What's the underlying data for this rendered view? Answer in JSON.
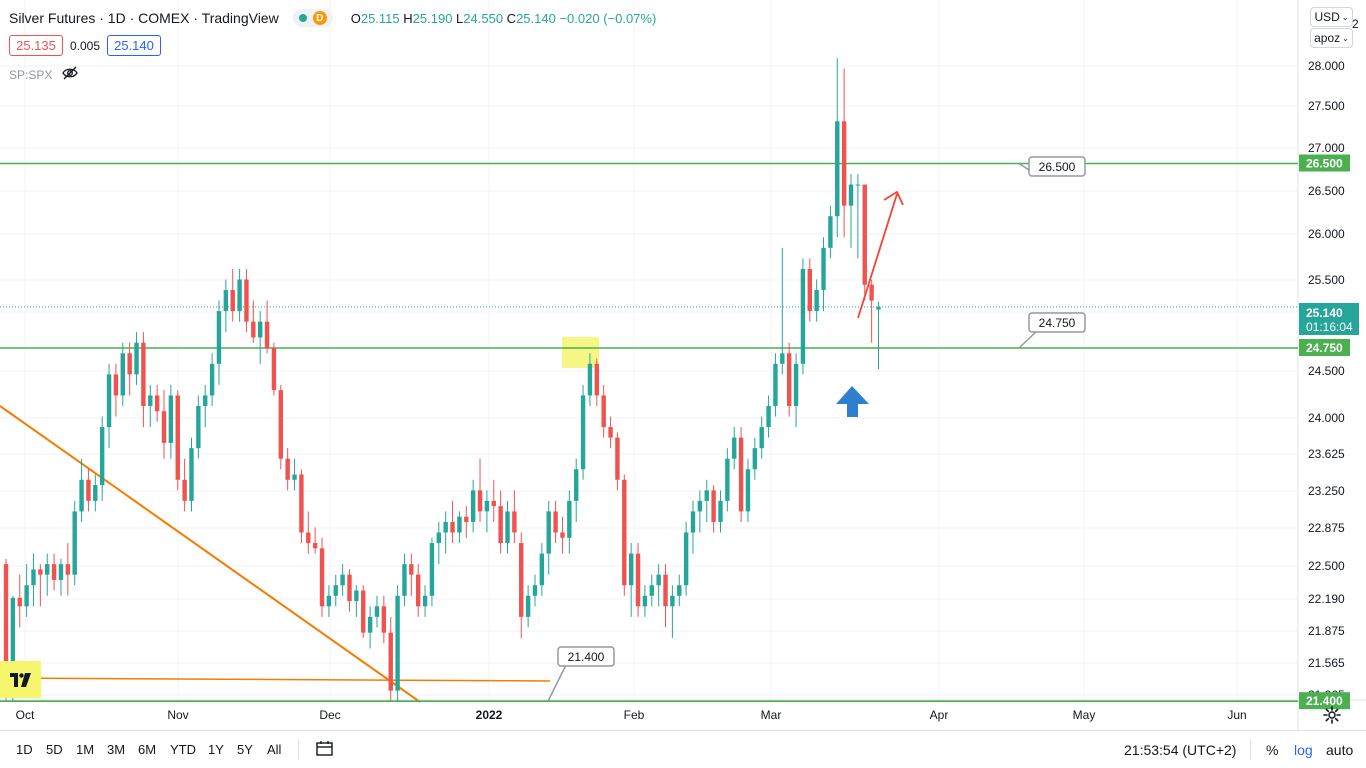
{
  "header": {
    "symbol_title": "Silver Futures · 1D · COMEX · TradingView",
    "delay_badge": "D",
    "ohlc": {
      "o_label": "O",
      "o": "25.115",
      "h_label": "H",
      "h": "25.190",
      "l_label": "L",
      "l": "24.550",
      "c_label": "C",
      "c": "25.140",
      "change": "−0.020 (−0.07%)"
    },
    "bid": "25.135",
    "spread": "0.005",
    "ask": "25.140",
    "overlay_symbol": "SP:SPX",
    "currency": "USD",
    "scale_mode": "apoz",
    "scale_top_partial": "2"
  },
  "bottom_bar": {
    "ranges": [
      "1D",
      "5D",
      "1M",
      "3M",
      "6M",
      "YTD",
      "1Y",
      "5Y",
      "All"
    ],
    "clock": "21:53:54 (UTC+2)",
    "percent": "%",
    "log": "log",
    "auto": "auto"
  },
  "colors": {
    "up": "#26a69a",
    "down": "#ef5350",
    "level_line": "#4caf50",
    "trend_line": "#f57c00",
    "grid": "#f0f3fa",
    "highlight": "#f5f56e",
    "arrow_red": "#f44336",
    "arrow_blue": "#2f7fd1"
  },
  "icons": {
    "chart_type": "candles-icon",
    "settings": "gear-icon",
    "eye_hidden": "eye-off-icon",
    "range_compare": "calendar-range-icon"
  },
  "chart_data": {
    "type": "candlestick",
    "title": "Silver Futures · 1D · COMEX",
    "y_axis_ticks": [
      "28.000",
      "27.500",
      "27.000",
      "26.500",
      "26.000",
      "25.500",
      "25.000",
      "24.500",
      "24.000",
      "23.625",
      "23.250",
      "22.875",
      "22.500",
      "22.190",
      "21.875",
      "21.565",
      "21.265"
    ],
    "x_axis_ticks": [
      "Oct",
      "Nov",
      "Dec",
      "2022",
      "Feb",
      "Mar",
      "Apr",
      "May",
      "Jun"
    ],
    "ylim": [
      21.2,
      28.3
    ],
    "current_price": "25.140",
    "countdown": "01:16:04",
    "levels": [
      {
        "value": 26.5,
        "label": "26.500"
      },
      {
        "value": 24.75,
        "label": "24.750"
      },
      {
        "value": 21.4,
        "label": "21.400"
      }
    ],
    "candles": [
      [
        22.7,
        22.75,
        21.4,
        21.48
      ],
      [
        21.48,
        22.4,
        21.4,
        22.38
      ],
      [
        22.38,
        22.6,
        22.1,
        22.3
      ],
      [
        22.3,
        22.7,
        22.2,
        22.5
      ],
      [
        22.5,
        22.8,
        22.3,
        22.65
      ],
      [
        22.65,
        22.7,
        22.3,
        22.6
      ],
      [
        22.6,
        22.8,
        22.4,
        22.7
      ],
      [
        22.7,
        22.8,
        22.45,
        22.55
      ],
      [
        22.55,
        22.75,
        22.4,
        22.7
      ],
      [
        22.7,
        22.9,
        22.4,
        22.6
      ],
      [
        22.6,
        23.3,
        22.5,
        23.2
      ],
      [
        23.2,
        23.7,
        23.1,
        23.5
      ],
      [
        23.5,
        23.6,
        23.2,
        23.3
      ],
      [
        23.3,
        23.55,
        23.2,
        23.45
      ],
      [
        23.45,
        24.1,
        23.3,
        24.0
      ],
      [
        24.0,
        24.6,
        23.8,
        24.5
      ],
      [
        24.5,
        24.6,
        24.1,
        24.3
      ],
      [
        24.3,
        24.8,
        24.2,
        24.7
      ],
      [
        24.7,
        24.8,
        24.3,
        24.5
      ],
      [
        24.5,
        24.9,
        24.4,
        24.8
      ],
      [
        24.8,
        24.9,
        24.0,
        24.2
      ],
      [
        24.2,
        24.4,
        24.0,
        24.3
      ],
      [
        24.3,
        24.4,
        24.05,
        24.15
      ],
      [
        24.15,
        24.35,
        23.7,
        23.85
      ],
      [
        23.85,
        24.4,
        23.7,
        24.3
      ],
      [
        24.3,
        24.35,
        23.4,
        23.5
      ],
      [
        23.5,
        23.7,
        23.2,
        23.3
      ],
      [
        23.3,
        23.9,
        23.2,
        23.8
      ],
      [
        23.8,
        24.3,
        23.7,
        24.2
      ],
      [
        24.2,
        24.4,
        24.0,
        24.3
      ],
      [
        24.3,
        24.7,
        24.2,
        24.6
      ],
      [
        24.6,
        25.2,
        24.4,
        25.1
      ],
      [
        25.1,
        25.4,
        24.9,
        25.3
      ],
      [
        25.3,
        25.5,
        25.0,
        25.1
      ],
      [
        25.1,
        25.5,
        25.0,
        25.4
      ],
      [
        25.4,
        25.5,
        24.9,
        25.0
      ],
      [
        25.0,
        25.2,
        24.8,
        24.85
      ],
      [
        24.85,
        25.1,
        24.6,
        25.0
      ],
      [
        25.0,
        25.2,
        24.7,
        24.75
      ],
      [
        24.75,
        24.8,
        24.3,
        24.35
      ],
      [
        24.35,
        24.4,
        23.6,
        23.7
      ],
      [
        23.7,
        23.8,
        23.4,
        23.5
      ],
      [
        23.5,
        23.7,
        23.4,
        23.55
      ],
      [
        23.55,
        23.6,
        22.9,
        23.0
      ],
      [
        23.0,
        23.2,
        22.8,
        22.9
      ],
      [
        22.9,
        23.05,
        22.8,
        22.85
      ],
      [
        22.85,
        22.95,
        22.2,
        22.3
      ],
      [
        22.3,
        22.5,
        22.2,
        22.4
      ],
      [
        22.4,
        22.6,
        22.3,
        22.5
      ],
      [
        22.5,
        22.7,
        22.4,
        22.6
      ],
      [
        22.6,
        22.65,
        22.25,
        22.35
      ],
      [
        22.35,
        22.5,
        22.2,
        22.45
      ],
      [
        22.45,
        22.5,
        22.0,
        22.05
      ],
      [
        22.05,
        22.3,
        21.9,
        22.2
      ],
      [
        22.2,
        22.4,
        22.1,
        22.3
      ],
      [
        22.3,
        22.4,
        21.95,
        22.05
      ],
      [
        22.05,
        22.2,
        21.4,
        21.5
      ],
      [
        21.5,
        22.5,
        21.4,
        22.4
      ],
      [
        22.4,
        22.8,
        22.3,
        22.7
      ],
      [
        22.7,
        22.8,
        22.4,
        22.6
      ],
      [
        22.6,
        22.7,
        22.2,
        22.3
      ],
      [
        22.3,
        22.5,
        22.2,
        22.4
      ],
      [
        22.4,
        22.95,
        22.3,
        22.9
      ],
      [
        22.9,
        23.1,
        22.7,
        23.0
      ],
      [
        23.0,
        23.2,
        22.8,
        23.1
      ],
      [
        23.1,
        23.3,
        22.9,
        23.0
      ],
      [
        23.0,
        23.2,
        22.9,
        23.15
      ],
      [
        23.15,
        23.25,
        22.95,
        23.1
      ],
      [
        23.1,
        23.5,
        23.0,
        23.4
      ],
      [
        23.4,
        23.7,
        23.1,
        23.2
      ],
      [
        23.2,
        23.4,
        23.0,
        23.3
      ],
      [
        23.3,
        23.5,
        23.1,
        23.25
      ],
      [
        23.25,
        23.4,
        22.8,
        22.9
      ],
      [
        22.9,
        23.3,
        22.8,
        23.2
      ],
      [
        23.2,
        23.4,
        22.9,
        23.0
      ],
      [
        22.9,
        23.0,
        22.0,
        22.2
      ],
      [
        22.2,
        22.5,
        22.1,
        22.4
      ],
      [
        22.4,
        22.6,
        22.3,
        22.5
      ],
      [
        22.5,
        22.9,
        22.4,
        22.8
      ],
      [
        22.8,
        23.3,
        22.6,
        23.2
      ],
      [
        23.2,
        23.3,
        22.9,
        23.0
      ],
      [
        23.0,
        23.15,
        22.8,
        22.95
      ],
      [
        22.95,
        23.4,
        22.8,
        23.3
      ],
      [
        23.3,
        23.7,
        23.1,
        23.6
      ],
      [
        23.6,
        24.4,
        23.5,
        24.3
      ],
      [
        24.3,
        24.7,
        24.2,
        24.6
      ],
      [
        24.6,
        24.65,
        24.2,
        24.3
      ],
      [
        24.3,
        24.4,
        23.9,
        24.0
      ],
      [
        24.0,
        24.1,
        23.8,
        23.9
      ],
      [
        23.9,
        23.95,
        23.4,
        23.5
      ],
      [
        23.5,
        23.55,
        22.4,
        22.5
      ],
      [
        22.5,
        22.9,
        22.2,
        22.8
      ],
      [
        22.8,
        22.9,
        22.2,
        22.3
      ],
      [
        22.3,
        22.5,
        22.2,
        22.4
      ],
      [
        22.4,
        22.6,
        22.3,
        22.5
      ],
      [
        22.5,
        22.7,
        22.3,
        22.6
      ],
      [
        22.6,
        22.7,
        22.1,
        22.3
      ],
      [
        22.3,
        22.5,
        22.0,
        22.4
      ],
      [
        22.4,
        22.6,
        22.3,
        22.5
      ],
      [
        22.5,
        23.1,
        22.4,
        23.0
      ],
      [
        23.0,
        23.3,
        22.8,
        23.2
      ],
      [
        23.2,
        23.4,
        23.0,
        23.3
      ],
      [
        23.3,
        23.5,
        23.1,
        23.4
      ],
      [
        23.4,
        23.45,
        23.0,
        23.1
      ],
      [
        23.1,
        23.4,
        23.0,
        23.3
      ],
      [
        23.3,
        23.8,
        23.2,
        23.7
      ],
      [
        23.7,
        24.0,
        23.6,
        23.9
      ],
      [
        23.9,
        24.0,
        23.1,
        23.2
      ],
      [
        23.2,
        23.7,
        23.1,
        23.6
      ],
      [
        23.6,
        23.9,
        23.5,
        23.8
      ],
      [
        23.8,
        24.1,
        23.7,
        24.0
      ],
      [
        24.0,
        24.3,
        23.9,
        24.2
      ],
      [
        24.2,
        24.7,
        24.1,
        24.6
      ],
      [
        24.6,
        25.7,
        24.5,
        24.7
      ],
      [
        24.7,
        24.8,
        24.1,
        24.2
      ],
      [
        24.2,
        24.7,
        24.0,
        24.6
      ],
      [
        24.6,
        25.6,
        24.5,
        25.5
      ],
      [
        25.5,
        25.6,
        25.0,
        25.1
      ],
      [
        25.1,
        25.4,
        25.0,
        25.3
      ],
      [
        25.3,
        25.8,
        25.1,
        25.7
      ],
      [
        25.7,
        26.1,
        25.6,
        26.0
      ],
      [
        26.0,
        27.5,
        25.8,
        26.9
      ],
      [
        26.9,
        27.4,
        25.8,
        26.1
      ],
      [
        26.1,
        26.4,
        25.7,
        26.3
      ],
      [
        26.3,
        26.4,
        25.6,
        26.3
      ],
      [
        26.3,
        26.3,
        25.2,
        25.35
      ],
      [
        25.35,
        25.4,
        24.8,
        25.2
      ],
      [
        25.115,
        25.19,
        24.55,
        25.14
      ]
    ]
  }
}
